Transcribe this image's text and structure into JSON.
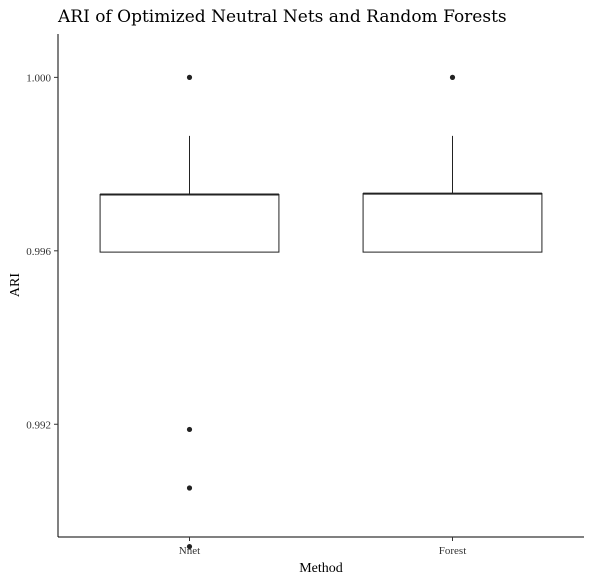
{
  "chart_data": {
    "type": "boxplot",
    "title": "ARI of Optimized Neutral Nets and Random Forests",
    "xlabel": "Method",
    "ylabel": "ARI",
    "categories": [
      "Nnet",
      "Forest"
    ],
    "ylim": [
      0.9894,
      1.001
    ],
    "yticks": [
      0.992,
      0.996,
      1.0
    ],
    "ytick_labels": [
      "0.992",
      "0.996",
      "1.000"
    ],
    "boxes": [
      {
        "name": "Nnet",
        "q1": 0.99597,
        "median": 0.9973,
        "q3": 0.9973,
        "whisker_low": 0.99597,
        "whisker_high": 0.99865,
        "outliers": [
          1.0,
          0.99188,
          0.99053,
          0.98918
        ]
      },
      {
        "name": "Forest",
        "q1": 0.99597,
        "median": 0.99732,
        "q3": 0.99732,
        "whisker_low": 0.99597,
        "whisker_high": 0.99865,
        "outliers": [
          1.0
        ]
      }
    ],
    "grid": false,
    "legend": "none"
  }
}
